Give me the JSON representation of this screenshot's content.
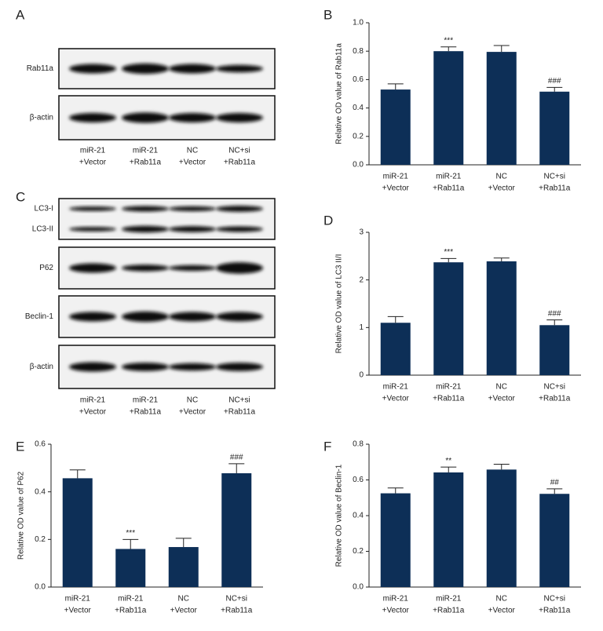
{
  "blots": [
    {
      "panel": "A",
      "boxes": [
        [
          "Rab11a"
        ],
        [
          "β-actin"
        ]
      ],
      "lanes": [
        [
          "miR-21",
          "+Vector"
        ],
        [
          "miR-21",
          "+Rab11a"
        ],
        [
          "NC",
          "+Vector"
        ],
        [
          "NC+si",
          "+Rab11a"
        ]
      ]
    },
    {
      "panel": "C",
      "boxes": [
        [
          "LC3-I",
          "LC3-II"
        ],
        [
          "P62"
        ],
        [
          "Beclin-1"
        ],
        [
          "β-actin"
        ]
      ],
      "lanes": [
        [
          "miR-21",
          "+Vector"
        ],
        [
          "miR-21",
          "+Rab11a"
        ],
        [
          "NC",
          "+Vector"
        ],
        [
          "NC+si",
          "+Rab11a"
        ]
      ]
    }
  ],
  "chart_data": [
    {
      "type": "bar",
      "panel": "B",
      "y_label": "Relative OD value of Rab11a",
      "color": "#0d2f57",
      "categories": [
        [
          "miR-21",
          "+Vector"
        ],
        [
          "miR-21",
          "+Rab11a"
        ],
        [
          "NC",
          "+Vector"
        ],
        [
          "NC+si",
          "+Rab11a"
        ]
      ],
      "values": [
        0.53,
        0.8,
        0.795,
        0.515
      ],
      "errors": [
        0.04,
        0.03,
        0.045,
        0.03
      ],
      "annotations": [
        null,
        "***",
        null,
        "###"
      ],
      "ylim": [
        0,
        1
      ],
      "yticks": [
        {
          "value": 0,
          "label": "0.0"
        },
        0.2,
        0.4,
        0.6,
        0.8,
        {
          "value": 1,
          "label": "1.0"
        }
      ]
    },
    {
      "type": "bar",
      "panel": "D",
      "y_label": "Relative OD value of LC3 II/I",
      "color": "#0d2f57",
      "categories": [
        [
          "miR-21",
          "+Vector"
        ],
        [
          "miR-21",
          "+Rab11a"
        ],
        [
          "NC",
          "+Vector"
        ],
        [
          "NC+si",
          "+Rab11a"
        ]
      ],
      "values": [
        1.1,
        2.37,
        2.39,
        1.05
      ],
      "errors": [
        0.13,
        0.08,
        0.07,
        0.11
      ],
      "annotations": [
        null,
        "***",
        null,
        "###"
      ],
      "ylim": [
        0,
        3
      ],
      "yticks": [
        0,
        1,
        2,
        3
      ]
    },
    {
      "type": "bar",
      "panel": "E",
      "y_label": "Relative OD value of P62",
      "color": "#0d2f57",
      "categories": [
        [
          "miR-21",
          "+Vector"
        ],
        [
          "miR-21",
          "+Rab11a"
        ],
        [
          "NC",
          "+Vector"
        ],
        [
          "NC+si",
          "+Rab11a"
        ]
      ],
      "values": [
        0.457,
        0.16,
        0.168,
        0.478
      ],
      "errors": [
        0.035,
        0.04,
        0.037,
        0.04
      ],
      "annotations": [
        null,
        "***",
        null,
        "###"
      ],
      "ylim": [
        0,
        0.6
      ],
      "yticks": [
        {
          "value": 0,
          "label": "0.0"
        },
        0.2,
        0.4,
        0.6
      ]
    },
    {
      "type": "bar",
      "panel": "F",
      "y_label": "Relative OD value of Beclin-1",
      "color": "#0d2f57",
      "categories": [
        [
          "miR-21",
          "+Vector"
        ],
        [
          "miR-21",
          "+Rab11a"
        ],
        [
          "NC",
          "+Vector"
        ],
        [
          "NC+si",
          "+Rab11a"
        ]
      ],
      "values": [
        0.525,
        0.642,
        0.658,
        0.522
      ],
      "errors": [
        0.03,
        0.03,
        0.03,
        0.028
      ],
      "annotations": [
        null,
        "**",
        null,
        "##"
      ],
      "ylim": [
        0,
        0.8
      ],
      "yticks": [
        {
          "value": 0,
          "label": "0.0"
        },
        0.2,
        0.4,
        0.6,
        0.8
      ]
    }
  ]
}
